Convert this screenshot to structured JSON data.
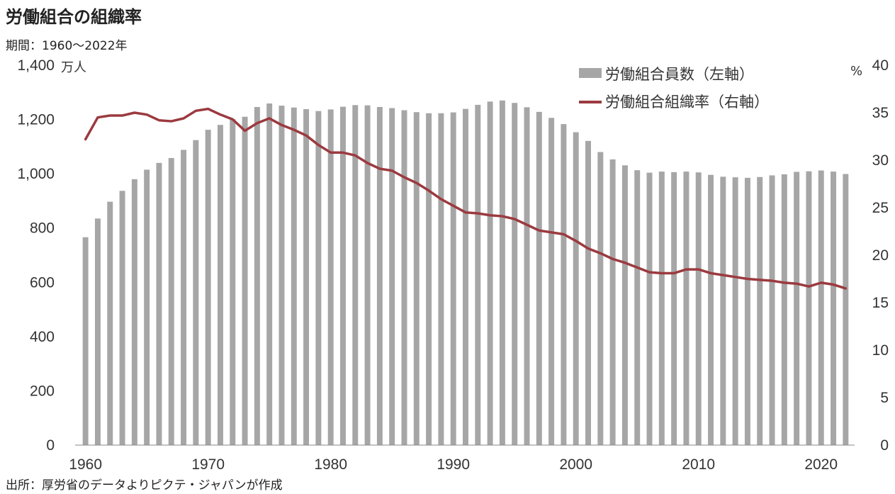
{
  "title": "労働組合の組織率",
  "subtitle": "期間：1960～2022年",
  "source": "出所：厚労省のデータよりピクテ・ジャパンが作成",
  "chart_data": {
    "type": "bar+line",
    "left_unit": "万人",
    "right_unit": "%",
    "left_ylim": [
      0,
      1400
    ],
    "right_ylim": [
      0,
      40
    ],
    "left_ticks": [
      "0",
      "200",
      "400",
      "600",
      "800",
      "1,000",
      "1,200",
      "1,400"
    ],
    "right_ticks": [
      "0",
      "5",
      "10",
      "15",
      "20",
      "25",
      "30",
      "35",
      "40"
    ],
    "x_ticks": [
      "1960",
      "1970",
      "1980",
      "1990",
      "2000",
      "2010",
      "2020"
    ],
    "colors": {
      "bar": "#a6a6a6",
      "line": "#9b3a3f"
    },
    "years": [
      1960,
      1961,
      1962,
      1963,
      1964,
      1965,
      1966,
      1967,
      1968,
      1969,
      1970,
      1971,
      1972,
      1973,
      1974,
      1975,
      1976,
      1977,
      1978,
      1979,
      1980,
      1981,
      1982,
      1983,
      1984,
      1985,
      1986,
      1987,
      1988,
      1989,
      1990,
      1991,
      1992,
      1993,
      1994,
      1995,
      1996,
      1997,
      1998,
      1999,
      2000,
      2001,
      2002,
      2003,
      2004,
      2005,
      2006,
      2007,
      2008,
      2009,
      2010,
      2011,
      2012,
      2013,
      2014,
      2015,
      2016,
      2017,
      2018,
      2019,
      2020,
      2021,
      2022
    ],
    "series": [
      {
        "name": "労働組合員数（左軸）",
        "type": "bar",
        "axis": "left",
        "values": [
          766,
          835,
          897,
          937,
          980,
          1015,
          1040,
          1058,
          1088,
          1124,
          1162,
          1180,
          1201,
          1210,
          1246,
          1259,
          1251,
          1244,
          1238,
          1231,
          1237,
          1247,
          1253,
          1252,
          1246,
          1242,
          1234,
          1227,
          1223,
          1223,
          1226,
          1239,
          1254,
          1266,
          1270,
          1261,
          1245,
          1228,
          1206,
          1183,
          1153,
          1121,
          1080,
          1053,
          1031,
          1013,
          1004,
          1008,
          1006,
          1008,
          1005,
          996,
          989,
          987,
          985,
          988,
          994,
          998,
          1007,
          1009,
          1012,
          1008,
          999
        ]
      },
      {
        "name": "労働組合組織率（右軸）",
        "type": "line",
        "axis": "right",
        "values": [
          32.2,
          34.5,
          34.7,
          34.7,
          35.0,
          34.8,
          34.2,
          34.1,
          34.4,
          35.2,
          35.4,
          34.8,
          34.3,
          33.1,
          33.9,
          34.4,
          33.7,
          33.2,
          32.6,
          31.6,
          30.8,
          30.8,
          30.5,
          29.7,
          29.1,
          28.9,
          28.2,
          27.6,
          26.8,
          25.9,
          25.2,
          24.5,
          24.4,
          24.2,
          24.1,
          23.8,
          23.2,
          22.6,
          22.4,
          22.2,
          21.5,
          20.7,
          20.2,
          19.6,
          19.2,
          18.7,
          18.2,
          18.1,
          18.1,
          18.5,
          18.5,
          18.1,
          17.9,
          17.7,
          17.5,
          17.4,
          17.3,
          17.1,
          17.0,
          16.7,
          17.1,
          16.9,
          16.5
        ]
      }
    ]
  }
}
